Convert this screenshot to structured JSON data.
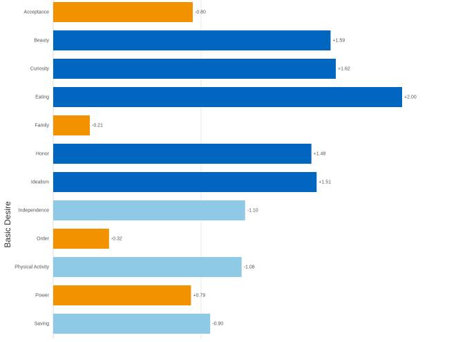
{
  "chart_data": {
    "type": "hbar",
    "y_label": "Basic Desire",
    "categories": [
      "Acceptance",
      "Beauty",
      "Curiosity",
      "Eating",
      "Family",
      "Honor",
      "Idealism",
      "Independence",
      "Order",
      "Physical Activity",
      "Power",
      "Saving"
    ],
    "values": [
      -0.8,
      1.59,
      1.62,
      2.0,
      -0.21,
      1.48,
      1.51,
      -1.1,
      -0.32,
      -1.08,
      0.79,
      -0.9
    ],
    "value_labels": [
      "-0.80",
      "+1.59",
      "+1.62",
      "+2.00",
      "-0.21",
      "+1.48",
      "+1.51",
      "-1.10",
      "-0.32",
      "-1.08",
      "+0.79",
      "-0.90"
    ],
    "colors": [
      "#f39200",
      "#0066c0",
      "#0066c0",
      "#0066c0",
      "#f39200",
      "#0066c0",
      "#0066c0",
      "#8ecae6",
      "#f39200",
      "#8ecae6",
      "#f39200",
      "#8ecae6"
    ],
    "xlim": [
      0,
      2.3
    ]
  }
}
